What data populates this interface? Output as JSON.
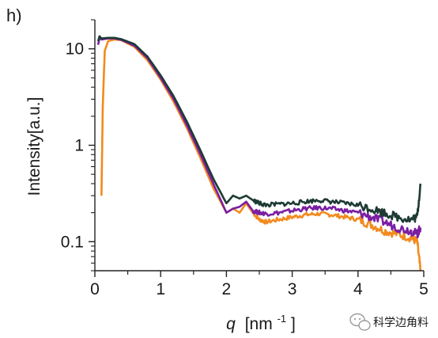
{
  "panel_label": "h)",
  "watermark": {
    "text": "科学边角料",
    "icon": "wechat-icon"
  },
  "chart_data": {
    "type": "line",
    "title": "",
    "xlabel": {
      "symbol": "q",
      "unit": "[nm",
      "exponent": "-1",
      "close": "]"
    },
    "ylabel": "Intensity[a.u.]",
    "xlim": [
      0,
      5
    ],
    "ylim": [
      0.05,
      20
    ],
    "yscale": "log",
    "grid": false,
    "legend": "none",
    "x_ticks": [
      {
        "value": 0,
        "label": "0"
      },
      {
        "value": 1,
        "label": "1"
      },
      {
        "value": 2,
        "label": "2"
      },
      {
        "value": 3,
        "label": "3"
      },
      {
        "value": 4,
        "label": "4"
      },
      {
        "value": 5,
        "label": "5"
      }
    ],
    "y_ticks": [
      {
        "value": 10,
        "label": "10"
      },
      {
        "value": 1,
        "label": "1"
      },
      {
        "value": 0.1,
        "label": "0.1"
      }
    ],
    "series": [
      {
        "color": "#f28a1e",
        "x": [
          0.1,
          0.12,
          0.15,
          0.2,
          0.3,
          0.4,
          0.6,
          0.8,
          1.0,
          1.2,
          1.4,
          1.6,
          1.8,
          2.0,
          2.1,
          2.2,
          2.3,
          2.4,
          2.5,
          2.6,
          2.8,
          3.0,
          3.2,
          3.4,
          3.6,
          3.8,
          4.0,
          4.2,
          4.4,
          4.6,
          4.8,
          4.9,
          4.95
        ],
        "y": [
          0.3,
          2.5,
          9.5,
          12.0,
          12.5,
          12.3,
          10.5,
          7.6,
          4.8,
          2.8,
          1.5,
          0.75,
          0.36,
          0.2,
          0.22,
          0.2,
          0.25,
          0.2,
          0.17,
          0.16,
          0.17,
          0.18,
          0.19,
          0.195,
          0.19,
          0.18,
          0.17,
          0.15,
          0.13,
          0.12,
          0.11,
          0.1,
          0.05
        ]
      },
      {
        "color": "#7a1fa2",
        "x": [
          0.05,
          0.07,
          0.1,
          0.2,
          0.3,
          0.4,
          0.6,
          0.8,
          1.0,
          1.2,
          1.4,
          1.6,
          1.8,
          2.0,
          2.1,
          2.2,
          2.3,
          2.4,
          2.5,
          2.6,
          2.8,
          3.0,
          3.2,
          3.4,
          3.6,
          3.8,
          4.0,
          4.2,
          4.4,
          4.6,
          4.8,
          4.9,
          4.95
        ],
        "y": [
          11.0,
          13.0,
          12.5,
          12.8,
          12.8,
          12.4,
          10.8,
          8.0,
          5.0,
          3.0,
          1.6,
          0.82,
          0.4,
          0.2,
          0.22,
          0.23,
          0.26,
          0.21,
          0.2,
          0.195,
          0.2,
          0.21,
          0.22,
          0.225,
          0.22,
          0.21,
          0.2,
          0.18,
          0.16,
          0.14,
          0.13,
          0.12,
          0.14
        ]
      },
      {
        "color": "#1d3b34",
        "x": [
          0.05,
          0.07,
          0.1,
          0.2,
          0.3,
          0.4,
          0.6,
          0.8,
          1.0,
          1.2,
          1.4,
          1.6,
          1.8,
          2.0,
          2.1,
          2.2,
          2.3,
          2.4,
          2.5,
          2.6,
          2.8,
          3.0,
          3.2,
          3.4,
          3.6,
          3.8,
          4.0,
          4.2,
          4.4,
          4.6,
          4.8,
          4.9,
          4.95
        ],
        "y": [
          12.0,
          13.5,
          12.8,
          13.0,
          13.0,
          12.6,
          11.2,
          8.3,
          5.3,
          3.2,
          1.75,
          0.9,
          0.45,
          0.25,
          0.3,
          0.28,
          0.3,
          0.27,
          0.25,
          0.24,
          0.245,
          0.25,
          0.26,
          0.27,
          0.26,
          0.25,
          0.24,
          0.22,
          0.2,
          0.18,
          0.17,
          0.18,
          0.4
        ]
      }
    ]
  }
}
